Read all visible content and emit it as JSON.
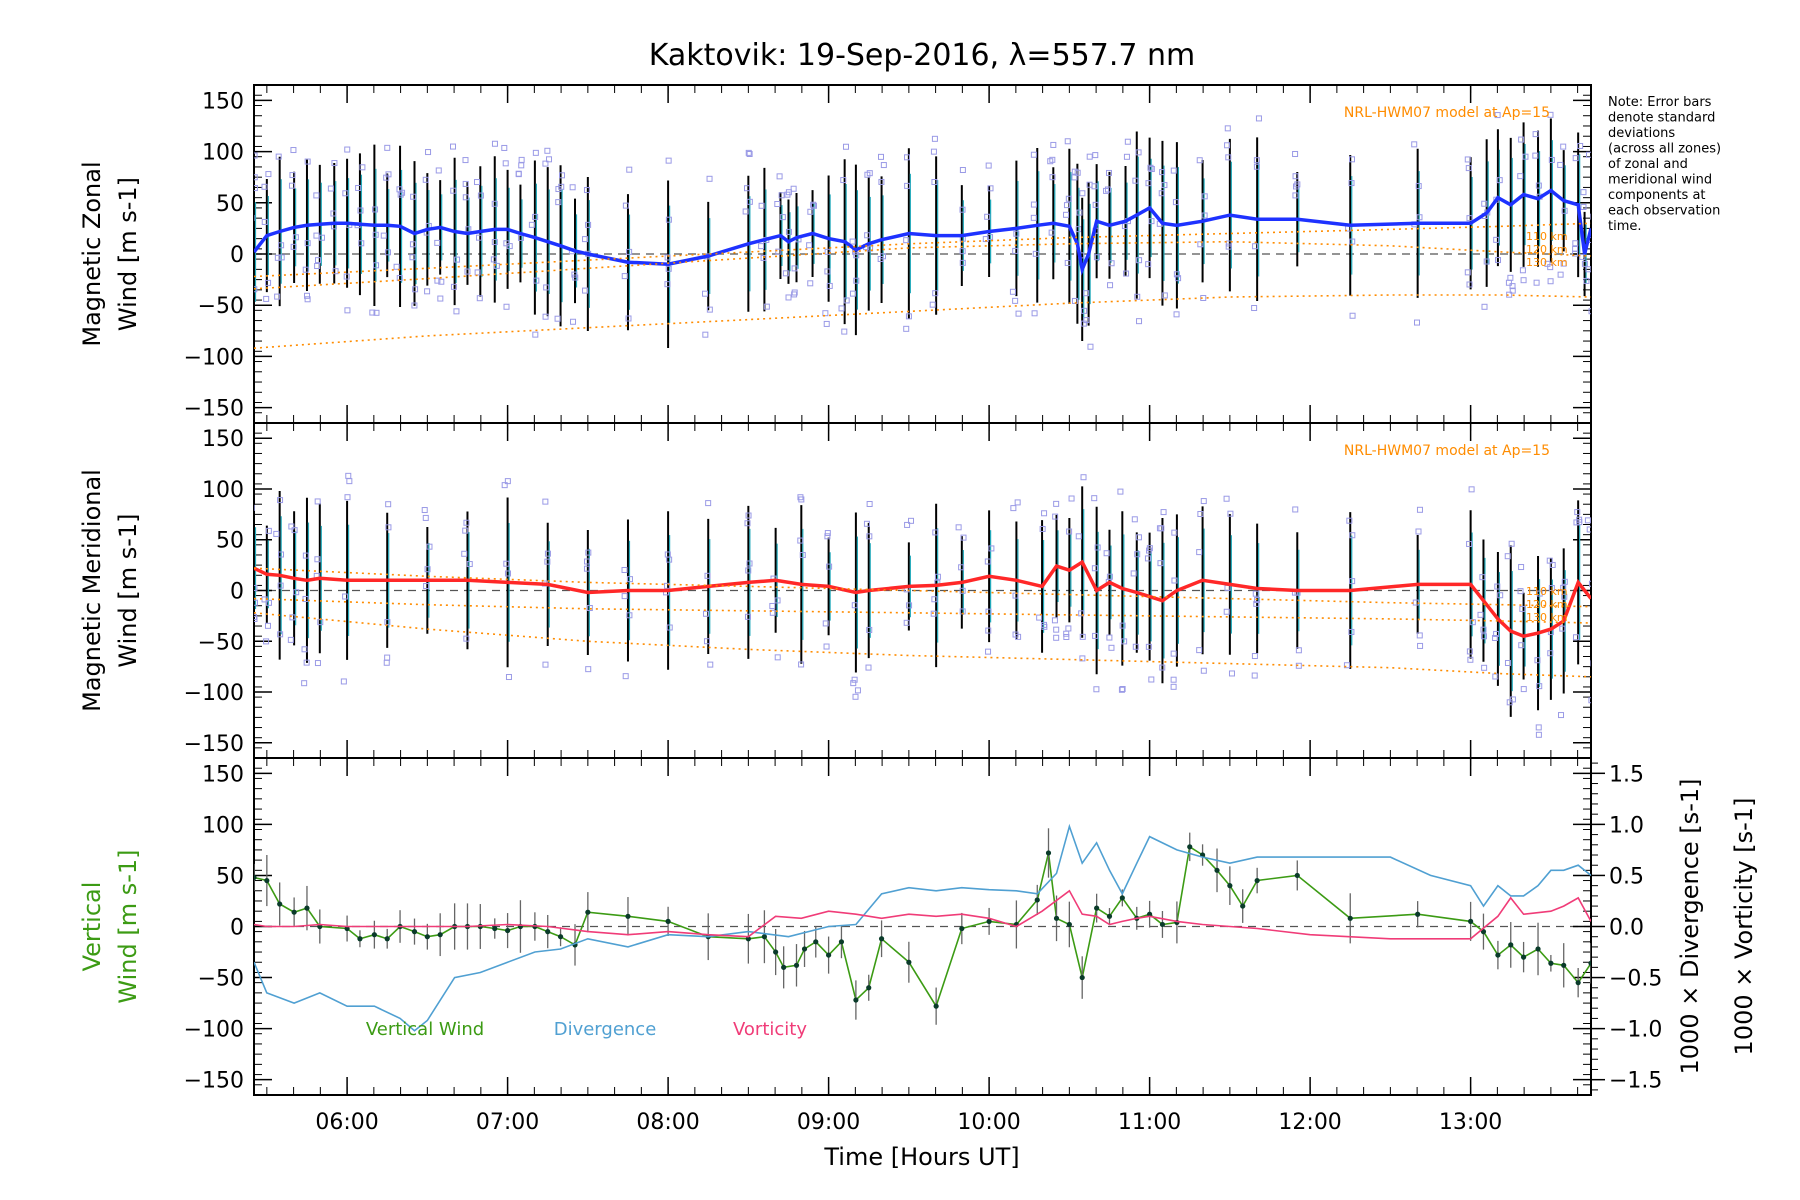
{
  "chart_data": {
    "type": "line",
    "title": "Kaktovik: 19-Sep-2016, λ=557.7 nm",
    "xlabel": "Time [Hours UT]",
    "xlim": [
      5.42,
      13.75
    ],
    "x_ticks": [
      "06:00",
      "07:00",
      "08:00",
      "09:00",
      "10:00",
      "11:00",
      "12:00",
      "13:00"
    ],
    "x_tick_values": [
      6,
      7,
      8,
      9,
      10,
      11,
      12,
      13
    ],
    "note_lines": [
      "Note: Error bars",
      "denote standard",
      "deviations",
      "(across all zones)",
      "of zonal and",
      "meridional wind",
      "components at",
      "each observation",
      "time."
    ],
    "panels": [
      {
        "id": "zonal",
        "ylabel_lines": [
          "Magnetic Zonal",
          "Wind [m s-1]"
        ],
        "ylim": [
          -165,
          165
        ],
        "y_ticks": [
          150,
          100,
          50,
          0,
          -50,
          -100,
          -150
        ],
        "y_tick_labels": [
          "150",
          "100",
          "50",
          "0",
          "−50",
          "−100",
          "−150"
        ],
        "model_label": "NRL-HWM07 model at Ap=15",
        "altitude_labels": [
          "110 km",
          "120 km",
          "130 km"
        ],
        "series": [
          {
            "name": "Zonal wind",
            "color": "#1e32ff",
            "x": [
              5.42,
              5.5,
              5.58,
              5.67,
              5.75,
              5.83,
              5.92,
              6.0,
              6.08,
              6.17,
              6.25,
              6.33,
              6.42,
              6.5,
              6.58,
              6.67,
              6.75,
              6.83,
              6.92,
              7.0,
              7.08,
              7.17,
              7.25,
              7.33,
              7.42,
              7.5,
              7.75,
              8.0,
              8.25,
              8.5,
              8.6,
              8.7,
              8.75,
              8.8,
              8.9,
              9.0,
              9.1,
              9.17,
              9.25,
              9.33,
              9.5,
              9.67,
              9.83,
              10.0,
              10.17,
              10.3,
              10.4,
              10.5,
              10.55,
              10.58,
              10.62,
              10.67,
              10.75,
              10.85,
              10.92,
              11.0,
              11.08,
              11.17,
              11.33,
              11.5,
              11.67,
              11.92,
              12.25,
              12.67,
              13.0,
              13.1,
              13.17,
              13.25,
              13.33,
              13.42,
              13.5,
              13.58,
              13.67,
              13.71,
              13.75
            ],
            "y": [
              2,
              18,
              22,
              26,
              28,
              29,
              30,
              30,
              29,
              28,
              28,
              27,
              20,
              24,
              26,
              22,
              20,
              22,
              24,
              24,
              20,
              16,
              12,
              8,
              3,
              0,
              -8,
              -10,
              -2,
              10,
              14,
              18,
              12,
              16,
              20,
              15,
              12,
              4,
              10,
              14,
              20,
              18,
              18,
              22,
              25,
              28,
              30,
              27,
              10,
              -15,
              0,
              32,
              28,
              32,
              38,
              45,
              30,
              28,
              32,
              38,
              34,
              34,
              28,
              30,
              30,
              40,
              55,
              48,
              58,
              54,
              62,
              52,
              48,
              0,
              25
            ]
          },
          {
            "name": "NRL-HWM07 110 km",
            "color": "#ff8c00",
            "dotted": true,
            "x": [
              5.42,
              6.5,
              7.5,
              8.5,
              9.5,
              10.5,
              11.5,
              12.5,
              13.2,
              13.75
            ],
            "y": [
              -22,
              -14,
              -6,
              2,
              10,
              16,
              20,
              24,
              27,
              30
            ]
          },
          {
            "name": "NRL-HWM07 120 km",
            "color": "#ff8c00",
            "dotted": true,
            "x": [
              5.42,
              6.5,
              7.5,
              8.5,
              9.5,
              10.5,
              11.5,
              12.5,
              13.2,
              13.75
            ],
            "y": [
              -34,
              -24,
              -14,
              -4,
              6,
              10,
              12,
              8,
              2,
              -2
            ]
          },
          {
            "name": "NRL-HWM07 130 km",
            "color": "#ff8c00",
            "dotted": true,
            "x": [
              5.42,
              6.5,
              7.5,
              8.5,
              9.5,
              10.5,
              11.5,
              12.5,
              13.2,
              13.75
            ],
            "y": [
              -92,
              -80,
              -72,
              -64,
              -56,
              -48,
              -42,
              -40,
              -40,
              -42
            ]
          }
        ]
      },
      {
        "id": "meridional",
        "ylabel_lines": [
          "Magnetic Meridional",
          "Wind [m s-1]"
        ],
        "ylim": [
          -165,
          165
        ],
        "y_ticks": [
          150,
          100,
          50,
          0,
          -50,
          -100,
          -150
        ],
        "y_tick_labels": [
          "150",
          "100",
          "50",
          "0",
          "−50",
          "−100",
          "−150"
        ],
        "model_label": "NRL-HWM07 model at Ap=15",
        "altitude_labels": [
          "110 km",
          "120 km",
          "130 km"
        ],
        "series": [
          {
            "name": "Meridional wind",
            "color": "#ff2828",
            "x": [
              5.42,
              5.5,
              5.58,
              5.67,
              5.75,
              5.83,
              6.0,
              6.25,
              6.5,
              6.75,
              7.0,
              7.25,
              7.5,
              7.75,
              8.0,
              8.25,
              8.5,
              8.67,
              8.83,
              9.0,
              9.17,
              9.25,
              9.5,
              9.67,
              9.83,
              10.0,
              10.17,
              10.33,
              10.42,
              10.5,
              10.58,
              10.67,
              10.75,
              10.83,
              10.92,
              11.0,
              11.08,
              11.17,
              11.33,
              11.5,
              11.67,
              11.92,
              12.25,
              12.67,
              13.0,
              13.08,
              13.17,
              13.25,
              13.33,
              13.42,
              13.5,
              13.58,
              13.67,
              13.75
            ],
            "y": [
              22,
              16,
              15,
              12,
              10,
              12,
              10,
              10,
              10,
              10,
              8,
              6,
              -2,
              0,
              0,
              4,
              8,
              10,
              6,
              4,
              -2,
              0,
              4,
              5,
              8,
              14,
              10,
              4,
              24,
              20,
              28,
              0,
              8,
              2,
              -2,
              -6,
              -10,
              0,
              10,
              6,
              2,
              0,
              0,
              6,
              6,
              -10,
              -28,
              -40,
              -45,
              -42,
              -38,
              -30,
              8,
              -8
            ]
          },
          {
            "name": "NRL-HWM07 110 km",
            "color": "#ff8c00",
            "dotted": true,
            "x": [
              5.42,
              6.5,
              7.5,
              8.5,
              9.5,
              10.5,
              11.5,
              12.5,
              13.2,
              13.75
            ],
            "y": [
              22,
              14,
              8,
              4,
              0,
              -4,
              -8,
              -12,
              -14,
              -16
            ]
          },
          {
            "name": "NRL-HWM07 120 km",
            "color": "#ff8c00",
            "dotted": true,
            "x": [
              5.42,
              6.5,
              7.5,
              8.5,
              9.5,
              10.5,
              11.5,
              12.5,
              13.2,
              13.75
            ],
            "y": [
              -8,
              -14,
              -18,
              -20,
              -22,
              -24,
              -26,
              -28,
              -30,
              -32
            ]
          },
          {
            "name": "NRL-HWM07 130 km",
            "color": "#ff8c00",
            "dotted": true,
            "x": [
              5.42,
              6.5,
              7.5,
              8.5,
              9.5,
              10.5,
              11.5,
              12.5,
              13.2,
              13.75
            ],
            "y": [
              -22,
              -38,
              -50,
              -58,
              -64,
              -68,
              -72,
              -76,
              -82,
              -85
            ]
          }
        ]
      },
      {
        "id": "vertical",
        "ylabel_lines": [
          "Vertical",
          "Wind [m s-1]"
        ],
        "ylim": [
          -165,
          165
        ],
        "y_ticks": [
          150,
          100,
          50,
          0,
          -50,
          -100,
          -150
        ],
        "y_tick_labels": [
          "150",
          "100",
          "50",
          "0",
          "−50",
          "−100",
          "−150"
        ],
        "y2lim": [
          -1.65,
          1.65
        ],
        "y2_ticks": [
          1.5,
          1.0,
          0.5,
          0.0,
          -0.5,
          -1.0,
          -1.5
        ],
        "y2_tick_labels": [
          "1.5",
          "1.0",
          "0.5",
          "0.0",
          "−0.5",
          "−1.0",
          "−1.5"
        ],
        "y2_labels": [
          "1000 × Divergence [s-1]",
          "1000 × Vorticity [s-1]"
        ],
        "legend": [
          "Vertical Wind",
          "Divergence",
          "Vorticity"
        ],
        "series": [
          {
            "name": "Vertical Wind",
            "color": "#3c9b14",
            "axis": "left",
            "x": [
              5.42,
              5.5,
              5.58,
              5.67,
              5.75,
              5.83,
              6.0,
              6.08,
              6.17,
              6.25,
              6.33,
              6.42,
              6.5,
              6.58,
              6.67,
              6.75,
              6.83,
              6.92,
              7.0,
              7.08,
              7.17,
              7.25,
              7.33,
              7.42,
              7.5,
              7.75,
              8.0,
              8.25,
              8.5,
              8.6,
              8.67,
              8.72,
              8.8,
              8.85,
              8.92,
              9.0,
              9.08,
              9.17,
              9.25,
              9.33,
              9.5,
              9.67,
              9.83,
              10.0,
              10.17,
              10.3,
              10.37,
              10.42,
              10.5,
              10.58,
              10.67,
              10.75,
              10.83,
              10.92,
              11.0,
              11.08,
              11.17,
              11.25,
              11.33,
              11.42,
              11.5,
              11.58,
              11.67,
              11.92,
              12.25,
              12.67,
              13.0,
              13.08,
              13.17,
              13.25,
              13.33,
              13.42,
              13.5,
              13.58,
              13.67,
              13.75
            ],
            "y": [
              48,
              45,
              22,
              14,
              18,
              0,
              -2,
              -12,
              -8,
              -12,
              0,
              -5,
              -10,
              -8,
              0,
              0,
              0,
              -2,
              -4,
              0,
              0,
              -5,
              -10,
              -18,
              14,
              10,
              5,
              -10,
              -12,
              -10,
              -25,
              -40,
              -38,
              -22,
              -15,
              -28,
              -15,
              -72,
              -60,
              -12,
              -35,
              -78,
              -2,
              5,
              2,
              26,
              72,
              8,
              2,
              -50,
              18,
              10,
              28,
              8,
              12,
              2,
              4,
              78,
              70,
              55,
              40,
              20,
              45,
              50,
              8,
              12,
              5,
              -5,
              -28,
              -18,
              -30,
              -22,
              -36,
              -38,
              -55,
              -36
            ]
          },
          {
            "name": "Divergence",
            "color": "#50a0d2",
            "axis": "right",
            "x": [
              5.42,
              5.5,
              5.67,
              5.83,
              6.0,
              6.17,
              6.33,
              6.42,
              6.5,
              6.67,
              6.83,
              7.0,
              7.17,
              7.33,
              7.5,
              7.75,
              8.0,
              8.25,
              8.5,
              8.75,
              9.0,
              9.17,
              9.33,
              9.5,
              9.67,
              9.83,
              10.0,
              10.17,
              10.3,
              10.42,
              10.5,
              10.58,
              10.67,
              10.75,
              10.83,
              10.92,
              11.0,
              11.17,
              11.33,
              11.5,
              11.67,
              11.83,
              12.0,
              12.25,
              12.5,
              12.75,
              13.0,
              13.08,
              13.17,
              13.25,
              13.33,
              13.42,
              13.5,
              13.58,
              13.67,
              13.75
            ],
            "y": [
              -0.35,
              -0.65,
              -0.75,
              -0.65,
              -0.78,
              -0.78,
              -0.9,
              -1.02,
              -0.92,
              -0.5,
              -0.45,
              -0.35,
              -0.25,
              -0.22,
              -0.12,
              -0.2,
              -0.08,
              -0.1,
              -0.05,
              -0.1,
              0.0,
              0.02,
              0.32,
              0.38,
              0.35,
              0.38,
              0.36,
              0.35,
              0.32,
              0.52,
              0.98,
              0.62,
              0.82,
              0.55,
              0.32,
              0.62,
              0.88,
              0.75,
              0.68,
              0.62,
              0.68,
              0.68,
              0.68,
              0.68,
              0.68,
              0.5,
              0.4,
              0.2,
              0.4,
              0.3,
              0.3,
              0.4,
              0.55,
              0.55,
              0.6,
              0.5
            ]
          },
          {
            "name": "Vorticity",
            "color": "#f03c78",
            "axis": "right",
            "x": [
              5.42,
              5.5,
              5.67,
              5.83,
              6.0,
              6.25,
              6.5,
              6.75,
              7.0,
              7.25,
              7.5,
              7.75,
              8.0,
              8.25,
              8.5,
              8.67,
              8.83,
              9.0,
              9.17,
              9.33,
              9.5,
              9.67,
              9.83,
              10.0,
              10.17,
              10.33,
              10.5,
              10.58,
              10.67,
              10.75,
              10.83,
              10.92,
              11.0,
              11.17,
              11.33,
              11.5,
              11.67,
              12.0,
              12.5,
              13.0,
              13.17,
              13.25,
              13.33,
              13.5,
              13.58,
              13.67,
              13.75
            ],
            "y": [
              0.02,
              0.0,
              0.0,
              0.02,
              0.0,
              0.0,
              0.0,
              0.0,
              0.02,
              0.0,
              -0.05,
              -0.08,
              -0.05,
              -0.08,
              -0.1,
              0.1,
              0.08,
              0.15,
              0.12,
              0.08,
              0.12,
              0.1,
              0.12,
              0.08,
              0.0,
              0.15,
              0.35,
              0.12,
              0.1,
              0.02,
              0.05,
              0.08,
              0.1,
              0.05,
              0.02,
              0.0,
              -0.02,
              -0.08,
              -0.12,
              -0.12,
              0.1,
              0.28,
              0.12,
              0.15,
              0.2,
              0.28,
              0.05
            ]
          }
        ]
      }
    ]
  }
}
